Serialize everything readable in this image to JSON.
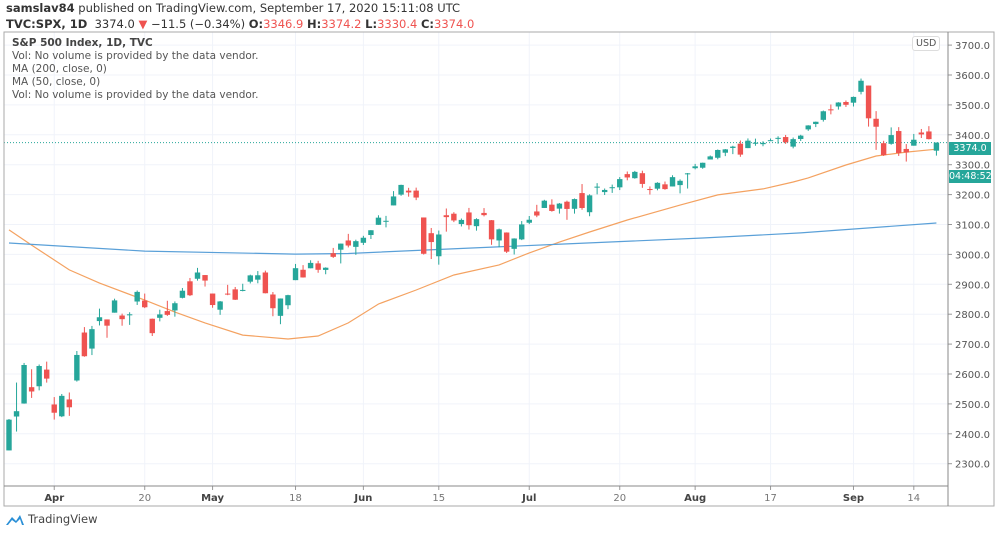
{
  "header": {
    "author": "samslav84",
    "published_text": "published on TradingView.com, September 17, 2020 15:11:08 UTC",
    "symbol": "TVC:SPX, 1D",
    "last": "3374.0",
    "change_icon": "triangle-down",
    "change": "−11.5 (−0.34%)",
    "o_label": "O:",
    "o": "3346.9",
    "h_label": "H:",
    "h": "3374.2",
    "l_label": "L:",
    "l": "3330.4",
    "c_label": "C:",
    "c": "3374.0"
  },
  "legend": [
    "S&P 500 Index, 1D, TVC",
    "Vol: No volume is provided by the data vendor.",
    "MA (200, close, 0)",
    "MA (50, close, 0)",
    "Vol: No volume is provided by the data vendor."
  ],
  "price_axis": {
    "currency": "USD",
    "last_price_tag": "3374.0",
    "countdown": "04:48:52"
  },
  "footer": {
    "brand": "TradingView"
  },
  "colors": {
    "up": "#26a69a",
    "down": "#ef5350",
    "ma50": "#f4a261",
    "ma200": "#5aa0d8",
    "grid": "#f0f3fa"
  },
  "chart_data": {
    "type": "candlestick",
    "title": "S&P 500 Index, 1D, TVC",
    "ylim": [
      2200,
      3700
    ],
    "yticks": [
      "3700.0",
      "3600.0",
      "3500.0",
      "3400.0",
      "3300.0",
      "3200.0",
      "3100.0",
      "3000.0",
      "2900.0",
      "2800.0",
      "2700.0",
      "2600.0",
      "2500.0",
      "2400.0",
      "2300.0"
    ],
    "xticks": [
      {
        "label": "Apr",
        "date": "2020-04-01",
        "major": true
      },
      {
        "label": "20",
        "date": "2020-04-20",
        "major": false
      },
      {
        "label": "May",
        "date": "2020-05-01",
        "major": true
      },
      {
        "label": "18",
        "date": "2020-05-18",
        "major": false
      },
      {
        "label": "Jun",
        "date": "2020-06-01",
        "major": true
      },
      {
        "label": "15",
        "date": "2020-06-15",
        "major": false
      },
      {
        "label": "Jul",
        "date": "2020-07-01",
        "major": true
      },
      {
        "label": "20",
        "date": "2020-07-20",
        "major": false
      },
      {
        "label": "Aug",
        "date": "2020-08-03",
        "major": true
      },
      {
        "label": "17",
        "date": "2020-08-17",
        "major": false
      },
      {
        "label": "Sep",
        "date": "2020-09-01",
        "major": true
      },
      {
        "label": "14",
        "date": "2020-09-14",
        "major": false
      }
    ],
    "grid": true,
    "last_close": 3374.0,
    "candles_columns": [
      "date",
      "open",
      "high",
      "low",
      "close"
    ],
    "candles": [
      [
        "2020-03-24",
        2344.4,
        2449.7,
        2344.4,
        2447.3
      ],
      [
        "2020-03-25",
        2457.8,
        2571.4,
        2407.5,
        2475.6
      ],
      [
        "2020-03-26",
        2501.3,
        2637.0,
        2500.7,
        2630.1
      ],
      [
        "2020-03-27",
        2555.9,
        2615.9,
        2520.0,
        2541.5
      ],
      [
        "2020-03-30",
        2559.0,
        2631.8,
        2545.3,
        2626.7
      ],
      [
        "2020-03-31",
        2614.7,
        2641.4,
        2571.2,
        2584.6
      ],
      [
        "2020-04-01",
        2498.1,
        2522.8,
        2447.5,
        2470.5
      ],
      [
        "2020-04-02",
        2458.5,
        2533.2,
        2455.8,
        2526.9
      ],
      [
        "2020-04-03",
        2514.9,
        2538.2,
        2460.0,
        2488.7
      ],
      [
        "2020-04-06",
        2578.3,
        2676.9,
        2574.6,
        2663.7
      ],
      [
        "2020-04-07",
        2738.7,
        2756.9,
        2657.7,
        2659.4
      ],
      [
        "2020-04-08",
        2685.0,
        2760.8,
        2663.3,
        2750.0
      ],
      [
        "2020-04-09",
        2777.0,
        2818.6,
        2762.4,
        2789.8
      ],
      [
        "2020-04-13",
        2782.5,
        2782.5,
        2721.2,
        2761.6
      ],
      [
        "2020-04-14",
        2805.1,
        2851.9,
        2805.1,
        2846.1
      ],
      [
        "2020-04-15",
        2795.6,
        2801.9,
        2761.5,
        2783.4
      ],
      [
        "2020-04-16",
        2799.3,
        2806.5,
        2764.3,
        2799.6
      ],
      [
        "2020-04-17",
        2842.4,
        2879.2,
        2830.9,
        2874.6
      ],
      [
        "2020-04-20",
        2845.6,
        2869.0,
        2820.4,
        2823.2
      ],
      [
        "2020-04-21",
        2784.8,
        2785.5,
        2727.1,
        2736.6
      ],
      [
        "2020-04-22",
        2787.9,
        2815.1,
        2776.0,
        2799.3
      ],
      [
        "2020-04-23",
        2810.4,
        2844.9,
        2794.3,
        2797.8
      ],
      [
        "2020-04-24",
        2812.6,
        2842.7,
        2791.8,
        2836.7
      ],
      [
        "2020-04-27",
        2854.7,
        2887.7,
        2852.9,
        2878.5
      ],
      [
        "2020-04-28",
        2910.0,
        2921.2,
        2860.7,
        2863.4
      ],
      [
        "2020-04-29",
        2918.5,
        2954.9,
        2912.2,
        2939.5
      ],
      [
        "2020-04-30",
        2930.9,
        2930.9,
        2892.5,
        2912.4
      ],
      [
        "2020-05-01",
        2869.1,
        2869.1,
        2821.6,
        2830.7
      ],
      [
        "2020-05-04",
        2815.0,
        2844.2,
        2797.9,
        2842.7
      ],
      [
        "2020-05-05",
        2868.9,
        2898.2,
        2863.6,
        2868.4
      ],
      [
        "2020-05-06",
        2883.1,
        2891.1,
        2847.7,
        2848.4
      ],
      [
        "2020-05-07",
        2878.3,
        2901.9,
        2876.5,
        2881.2
      ],
      [
        "2020-05-08",
        2908.8,
        2932.2,
        2902.9,
        2929.8
      ],
      [
        "2020-05-11",
        2915.5,
        2944.3,
        2903.4,
        2930.2
      ],
      [
        "2020-05-12",
        2939.5,
        2945.8,
        2869.6,
        2870.1
      ],
      [
        "2020-05-13",
        2865.9,
        2874.1,
        2793.2,
        2820.0
      ],
      [
        "2020-05-14",
        2794.5,
        2852.8,
        2766.6,
        2852.5
      ],
      [
        "2020-05-15",
        2830.0,
        2865.0,
        2816.8,
        2863.7
      ],
      [
        "2020-05-18",
        2913.9,
        2968.1,
        2913.9,
        2953.9
      ],
      [
        "2020-05-19",
        2948.6,
        2964.2,
        2922.4,
        2922.9
      ],
      [
        "2020-05-20",
        2953.6,
        2980.3,
        2953.6,
        2971.6
      ],
      [
        "2020-05-21",
        2970.0,
        2978.5,
        2938.6,
        2948.5
      ],
      [
        "2020-05-22",
        2948.1,
        2956.8,
        2933.6,
        2955.5
      ],
      [
        "2020-05-26",
        3004.1,
        3021.7,
        2988.2,
        2991.8
      ],
      [
        "2020-05-27",
        3015.7,
        3036.3,
        2969.8,
        3036.1
      ],
      [
        "2020-05-28",
        3046.6,
        3068.7,
        3023.4,
        3029.7
      ],
      [
        "2020-05-29",
        3025.2,
        3049.2,
        2998.6,
        3044.3
      ],
      [
        "2020-06-01",
        3038.8,
        3062.2,
        3031.5,
        3055.7
      ],
      [
        "2020-06-02",
        3064.8,
        3081.1,
        3051.6,
        3080.8
      ],
      [
        "2020-06-03",
        3098.9,
        3130.9,
        3098.9,
        3122.9
      ],
      [
        "2020-06-04",
        3111.6,
        3128.9,
        3090.4,
        3112.4
      ],
      [
        "2020-06-05",
        3163.8,
        3211.7,
        3163.8,
        3193.9
      ],
      [
        "2020-06-08",
        3199.9,
        3233.1,
        3196.0,
        3232.4
      ],
      [
        "2020-06-09",
        3213.3,
        3222.7,
        3193.1,
        3207.2
      ],
      [
        "2020-06-10",
        3213.4,
        3223.3,
        3181.5,
        3190.1
      ],
      [
        "2020-06-11",
        3123.5,
        3123.5,
        2999.5,
        3002.1
      ],
      [
        "2020-06-12",
        3071.0,
        3088.4,
        2984.5,
        3041.3
      ],
      [
        "2020-06-15",
        2993.8,
        3079.8,
        2965.7,
        3066.6
      ],
      [
        "2020-06-16",
        3131.0,
        3153.5,
        3076.1,
        3124.7
      ],
      [
        "2020-06-17",
        3136.1,
        3141.2,
        3108.0,
        3113.5
      ],
      [
        "2020-06-18",
        3101.6,
        3120.0,
        3093.5,
        3115.3
      ],
      [
        "2020-06-19",
        3140.3,
        3155.5,
        3083.1,
        3097.7
      ],
      [
        "2020-06-22",
        3094.4,
        3120.9,
        3079.4,
        3117.9
      ],
      [
        "2020-06-23",
        3138.7,
        3154.9,
        3127.1,
        3131.3
      ],
      [
        "2020-06-24",
        3114.4,
        3115.0,
        3032.1,
        3050.3
      ],
      [
        "2020-06-25",
        3046.6,
        3086.3,
        3024.0,
        3083.8
      ],
      [
        "2020-06-26",
        3073.2,
        3073.7,
        3004.6,
        3009.1
      ],
      [
        "2020-06-29",
        3018.6,
        3053.9,
        2999.7,
        3053.2
      ],
      [
        "2020-06-30",
        3050.2,
        3111.5,
        3047.8,
        3100.3
      ],
      [
        "2020-07-01",
        3105.9,
        3128.4,
        3101.2,
        3115.9
      ],
      [
        "2020-07-02",
        3143.6,
        3165.8,
        3124.5,
        3130.0
      ],
      [
        "2020-07-06",
        3155.3,
        3182.6,
        3155.3,
        3179.7
      ],
      [
        "2020-07-07",
        3166.4,
        3184.2,
        3142.9,
        3145.3
      ],
      [
        "2020-07-08",
        3153.1,
        3171.8,
        3136.5,
        3169.9
      ],
      [
        "2020-07-09",
        3176.2,
        3179.8,
        3115.7,
        3152.1
      ],
      [
        "2020-07-10",
        3152.5,
        3186.8,
        3136.2,
        3185.0
      ],
      [
        "2020-07-13",
        3205.1,
        3235.3,
        3149.4,
        3155.2
      ],
      [
        "2020-07-14",
        3141.1,
        3201.0,
        3127.7,
        3197.5
      ],
      [
        "2020-07-15",
        3226.0,
        3238.3,
        3200.8,
        3226.6
      ],
      [
        "2020-07-16",
        3208.4,
        3220.4,
        3198.6,
        3215.6
      ],
      [
        "2020-07-17",
        3224.2,
        3233.5,
        3205.7,
        3224.7
      ],
      [
        "2020-07-20",
        3224.3,
        3258.6,
        3215.2,
        3251.8
      ],
      [
        "2020-07-21",
        3268.5,
        3277.3,
        3247.8,
        3257.3
      ],
      [
        "2020-07-22",
        3254.9,
        3279.3,
        3253.1,
        3276.0
      ],
      [
        "2020-07-23",
        3271.6,
        3280.0,
        3222.7,
        3235.7
      ],
      [
        "2020-07-24",
        3218.6,
        3227.3,
        3200.1,
        3215.6
      ],
      [
        "2020-07-27",
        3219.8,
        3241.4,
        3214.3,
        3239.4
      ],
      [
        "2020-07-28",
        3234.3,
        3243.7,
        3216.2,
        3218.4
      ],
      [
        "2020-07-29",
        3227.2,
        3264.7,
        3227.2,
        3258.4
      ],
      [
        "2020-07-30",
        3231.8,
        3250.9,
        3204.1,
        3246.2
      ],
      [
        "2020-07-31",
        3270.5,
        3272.2,
        3220.3,
        3271.1
      ],
      [
        "2020-08-03",
        3288.3,
        3302.7,
        3284.5,
        3294.6
      ],
      [
        "2020-08-04",
        3289.9,
        3306.8,
        3286.4,
        3306.5
      ],
      [
        "2020-08-05",
        3317.4,
        3330.8,
        3317.4,
        3327.8
      ],
      [
        "2020-08-06",
        3323.2,
        3351.0,
        3318.1,
        3349.2
      ],
      [
        "2020-08-07",
        3340.1,
        3352.5,
        3328.7,
        3351.3
      ],
      [
        "2020-08-10",
        3356.0,
        3363.3,
        3335.4,
        3360.5
      ],
      [
        "2020-08-11",
        3370.3,
        3381.0,
        3326.4,
        3333.7
      ],
      [
        "2020-08-12",
        3355.5,
        3387.9,
        3355.5,
        3380.4
      ],
      [
        "2020-08-13",
        3373.0,
        3387.2,
        3363.4,
        3373.4
      ],
      [
        "2020-08-14",
        3368.7,
        3378.5,
        3361.6,
        3372.9
      ],
      [
        "2020-08-17",
        3380.9,
        3387.6,
        3379.2,
        3382.0
      ],
      [
        "2020-08-18",
        3387.0,
        3395.1,
        3370.2,
        3389.8
      ],
      [
        "2020-08-19",
        3392.5,
        3399.5,
        3369.7,
        3374.9
      ],
      [
        "2020-08-20",
        3360.5,
        3390.8,
        3354.7,
        3385.5
      ],
      [
        "2020-08-21",
        3386.0,
        3400.0,
        3379.3,
        3397.2
      ],
      [
        "2020-08-24",
        3418.1,
        3432.1,
        3413.1,
        3431.3
      ],
      [
        "2020-08-25",
        3436.0,
        3444.2,
        3425.8,
        3443.6
      ],
      [
        "2020-08-26",
        3450.0,
        3481.1,
        3444.2,
        3478.7
      ],
      [
        "2020-08-27",
        3485.1,
        3501.4,
        3468.4,
        3484.6
      ],
      [
        "2020-08-28",
        3494.7,
        3509.2,
        3484.3,
        3508.0
      ],
      [
        "2020-08-31",
        3509.7,
        3514.8,
        3493.3,
        3500.3
      ],
      [
        "2020-09-01",
        3507.4,
        3528.0,
        3494.6,
        3526.7
      ],
      [
        "2020-09-02",
        3543.8,
        3588.1,
        3535.2,
        3580.8
      ],
      [
        "2020-09-03",
        3564.7,
        3564.9,
        3427.4,
        3455.1
      ],
      [
        "2020-09-04",
        3453.6,
        3479.2,
        3349.6,
        3427.0
      ],
      [
        "2020-09-08",
        3371.9,
        3380.0,
        3329.3,
        3331.8
      ],
      [
        "2020-09-09",
        3369.8,
        3424.8,
        3366.8,
        3399.0
      ],
      [
        "2020-09-10",
        3412.6,
        3425.6,
        3329.3,
        3339.2
      ],
      [
        "2020-09-11",
        3352.7,
        3369.0,
        3310.5,
        3341.0
      ],
      [
        "2020-09-14",
        3363.6,
        3402.9,
        3363.6,
        3383.5
      ],
      [
        "2020-09-15",
        3407.7,
        3419.5,
        3389.3,
        3401.2
      ],
      [
        "2020-09-16",
        3411.2,
        3428.9,
        3384.5,
        3385.5
      ],
      [
        "2020-09-17",
        3346.9,
        3374.2,
        3330.4,
        3374.0
      ]
    ],
    "series": [
      {
        "name": "MA (50, close, 0)",
        "points": [
          [
            "2020-03-24",
            3082
          ],
          [
            "2020-03-27",
            3031
          ],
          [
            "2020-04-03",
            2948
          ],
          [
            "2020-04-09",
            2904
          ],
          [
            "2020-04-20",
            2847
          ],
          [
            "2020-04-24",
            2807
          ],
          [
            "2020-04-30",
            2771
          ],
          [
            "2020-05-07",
            2730
          ],
          [
            "2020-05-15",
            2717
          ],
          [
            "2020-05-21",
            2727
          ],
          [
            "2020-05-28",
            2771
          ],
          [
            "2020-06-03",
            2834
          ],
          [
            "2020-06-10",
            2881
          ],
          [
            "2020-06-17",
            2931
          ],
          [
            "2020-06-25",
            2965
          ],
          [
            "2020-07-01",
            3005
          ],
          [
            "2020-07-08",
            3041
          ],
          [
            "2020-07-14",
            3075
          ],
          [
            "2020-07-21",
            3115
          ],
          [
            "2020-07-30",
            3165
          ],
          [
            "2020-08-06",
            3199
          ],
          [
            "2020-08-14",
            3219
          ],
          [
            "2020-08-20",
            3242
          ],
          [
            "2020-08-24",
            3256
          ],
          [
            "2020-08-31",
            3299
          ],
          [
            "2020-09-04",
            3329
          ],
          [
            "2020-09-11",
            3342
          ],
          [
            "2020-09-17",
            3352
          ]
        ]
      },
      {
        "name": "MA (200, close, 0)",
        "points": [
          [
            "2020-03-24",
            3038
          ],
          [
            "2020-04-20",
            3011
          ],
          [
            "2020-05-18",
            3001
          ],
          [
            "2020-05-28",
            3003
          ],
          [
            "2020-06-19",
            3021
          ],
          [
            "2020-07-09",
            3035
          ],
          [
            "2020-08-04",
            3055
          ],
          [
            "2020-08-21",
            3072
          ],
          [
            "2020-09-17",
            3105
          ]
        ]
      }
    ]
  }
}
